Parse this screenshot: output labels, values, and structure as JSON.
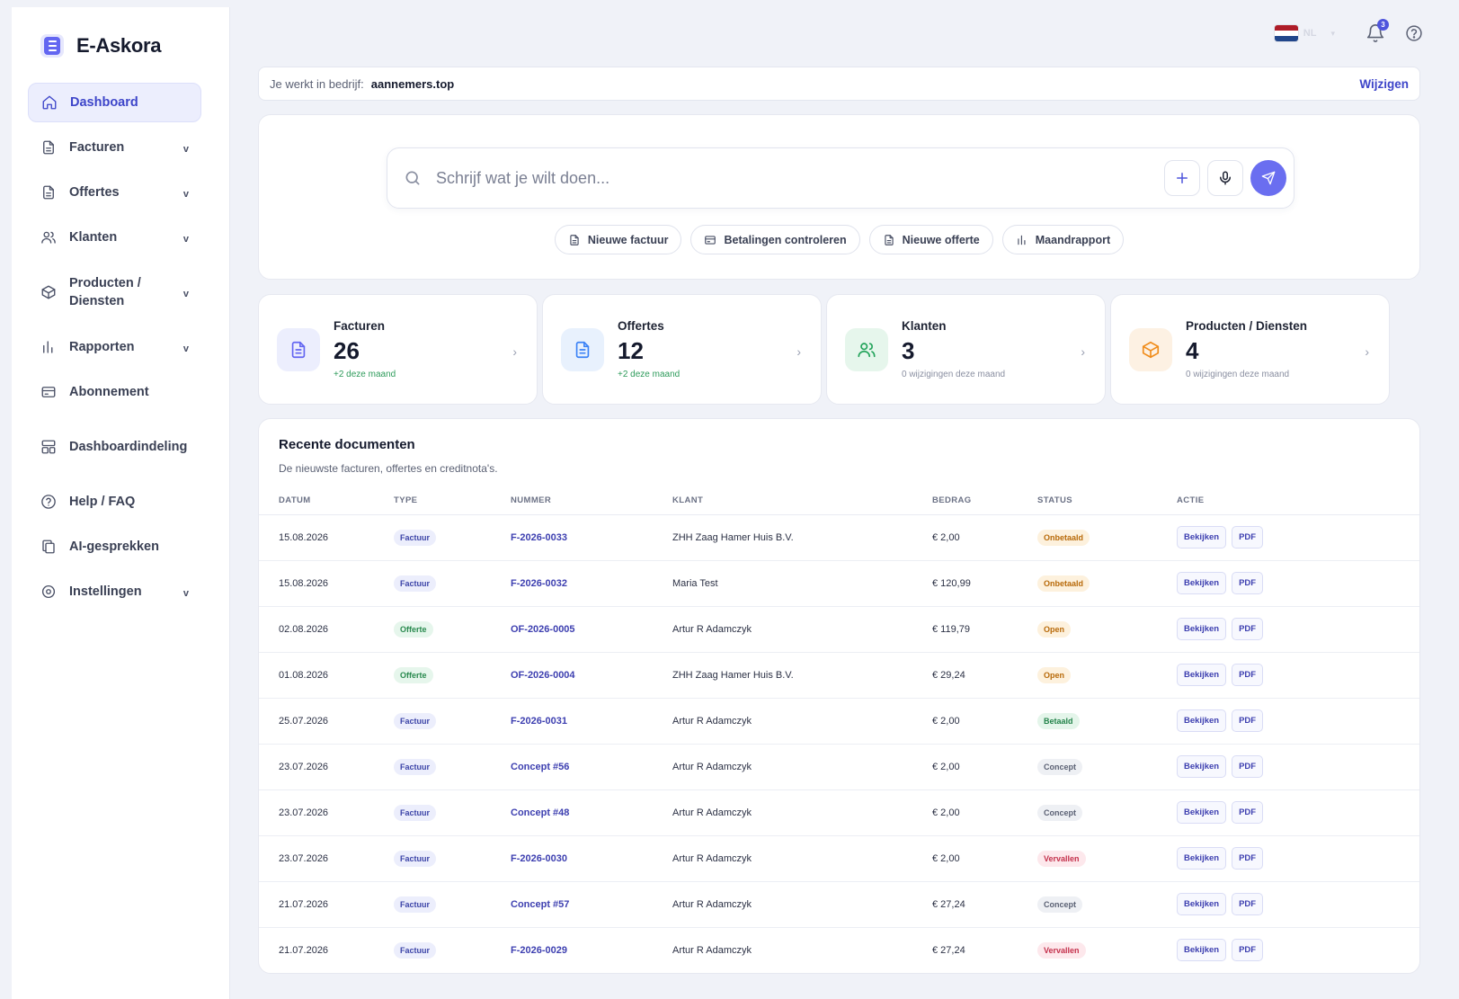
{
  "brand": {
    "name": "E-Askora"
  },
  "sidebar": {
    "items": [
      {
        "label": "Dashboard",
        "icon": "home-icon",
        "active": true,
        "chevron": ""
      },
      {
        "label": "Facturen",
        "icon": "document-icon",
        "chevron": "v"
      },
      {
        "label": "Offertes",
        "icon": "document-icon",
        "chevron": "v"
      },
      {
        "label": "Klanten",
        "icon": "users-icon",
        "chevron": "v"
      },
      {
        "label": "Producten / Diensten",
        "icon": "box-icon",
        "chevron": "v"
      },
      {
        "label": "Rapporten",
        "icon": "bar-chart-icon",
        "chevron": "v"
      },
      {
        "label": "Abonnement",
        "icon": "credit-card-icon",
        "chevron": ""
      },
      {
        "label": "Dashboardindeling",
        "icon": "layout-icon",
        "chevron": ""
      },
      {
        "label": "Help / FAQ",
        "icon": "help-circle-icon",
        "chevron": ""
      },
      {
        "label": "AI-gesprekken",
        "icon": "copy-icon",
        "chevron": ""
      },
      {
        "label": "Instellingen",
        "icon": "settings-icon",
        "chevron": "v"
      }
    ]
  },
  "topbar": {
    "language": "NL",
    "notifications_count": "3"
  },
  "company": {
    "prefix": "Je werkt in bedrijf:",
    "name": "aannemers.top",
    "change_label": "Wijzigen"
  },
  "assistant": {
    "placeholder": "Schrijf wat je wilt doen...",
    "chips": [
      {
        "label": "Nieuwe factuur",
        "icon": "document-icon"
      },
      {
        "label": "Betalingen controleren",
        "icon": "credit-card-icon"
      },
      {
        "label": "Nieuwe offerte",
        "icon": "document-icon"
      },
      {
        "label": "Maandrapport",
        "icon": "bar-chart-icon"
      }
    ]
  },
  "stats": [
    {
      "title": "Facturen",
      "value": "26",
      "sub": "+2 deze maand",
      "positive": true,
      "icon": "invoice-icon",
      "color": "#6366f1",
      "bg": "#eceefd"
    },
    {
      "title": "Offertes",
      "value": "12",
      "sub": "+2 deze maand",
      "positive": true,
      "icon": "quote-icon",
      "color": "#3b82f6",
      "bg": "#e8f1fd"
    },
    {
      "title": "Klanten",
      "value": "3",
      "sub": "0 wijzigingen deze maand",
      "positive": false,
      "icon": "users-icon",
      "color": "#22a35a",
      "bg": "#e6f6ec"
    },
    {
      "title": "Producten / Diensten",
      "value": "4",
      "sub": "0 wijzigingen deze maand",
      "positive": false,
      "icon": "box-icon",
      "color": "#f08c1a",
      "bg": "#fdf1e3"
    }
  ],
  "documents": {
    "title": "Recente documenten",
    "subtitle": "De nieuwste facturen, offertes en creditnota's.",
    "columns": [
      "DATUM",
      "TYPE",
      "NUMMER",
      "KLANT",
      "BEDRAG",
      "STATUS",
      "ACTIE"
    ],
    "view_label": "Bekijken",
    "pdf_label": "PDF",
    "rows": [
      {
        "datum": "15.08.2026",
        "type": "Factuur",
        "nummer": "F-2026-0033",
        "klant": "ZHH Zaag Hamer Huis B.V.",
        "bedrag": "€ 2,00",
        "status": "Onbetaald"
      },
      {
        "datum": "15.08.2026",
        "type": "Factuur",
        "nummer": "F-2026-0032",
        "klant": "Maria Test",
        "bedrag": "€ 120,99",
        "status": "Onbetaald"
      },
      {
        "datum": "02.08.2026",
        "type": "Offerte",
        "nummer": "OF-2026-0005",
        "klant": "Artur R Adamczyk",
        "bedrag": "€ 119,79",
        "status": "Open"
      },
      {
        "datum": "01.08.2026",
        "type": "Offerte",
        "nummer": "OF-2026-0004",
        "klant": "ZHH Zaag Hamer Huis B.V.",
        "bedrag": "€ 29,24",
        "status": "Open"
      },
      {
        "datum": "25.07.2026",
        "type": "Factuur",
        "nummer": "F-2026-0031",
        "klant": "Artur R Adamczyk",
        "bedrag": "€ 2,00",
        "status": "Betaald"
      },
      {
        "datum": "23.07.2026",
        "type": "Factuur",
        "nummer": "Concept #56",
        "klant": "Artur R Adamczyk",
        "bedrag": "€ 2,00",
        "status": "Concept"
      },
      {
        "datum": "23.07.2026",
        "type": "Factuur",
        "nummer": "Concept #48",
        "klant": "Artur R Adamczyk",
        "bedrag": "€ 2,00",
        "status": "Concept"
      },
      {
        "datum": "23.07.2026",
        "type": "Factuur",
        "nummer": "F-2026-0030",
        "klant": "Artur R Adamczyk",
        "bedrag": "€ 2,00",
        "status": "Vervallen"
      },
      {
        "datum": "21.07.2026",
        "type": "Factuur",
        "nummer": "Concept #57",
        "klant": "Artur R Adamczyk",
        "bedrag": "€ 27,24",
        "status": "Concept"
      },
      {
        "datum": "21.07.2026",
        "type": "Factuur",
        "nummer": "F-2026-0029",
        "klant": "Artur R Adamczyk",
        "bedrag": "€ 27,24",
        "status": "Vervallen"
      }
    ]
  }
}
